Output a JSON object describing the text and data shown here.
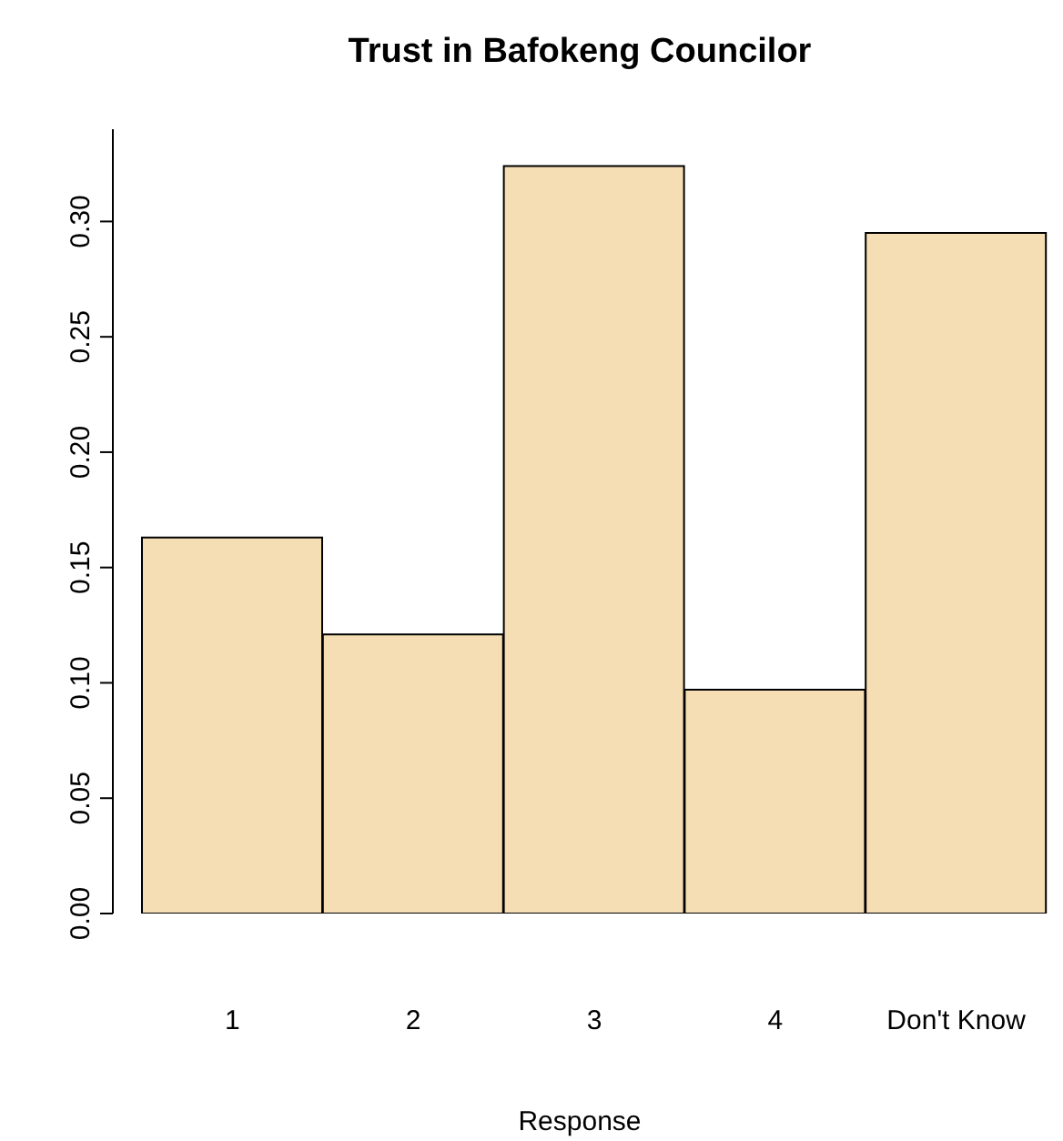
{
  "chart_data": {
    "type": "bar",
    "title": "Trust in Bafokeng Councilor",
    "xlabel": "Response",
    "categories": [
      "1",
      "2",
      "3",
      "4",
      "Don't Know"
    ],
    "values": [
      0.163,
      0.121,
      0.324,
      0.097,
      0.295
    ],
    "color": "#f5deb3",
    "ylim": [
      0,
      0.34
    ],
    "yticks": [
      {
        "value": 0,
        "label": "0.00"
      },
      0.05,
      {
        "value": 0.1,
        "label": "0.10"
      },
      0.15,
      {
        "value": 0.2,
        "label": "0.20"
      },
      0.25,
      {
        "value": 0.3,
        "label": "0.30"
      }
    ],
    "grid": false
  }
}
